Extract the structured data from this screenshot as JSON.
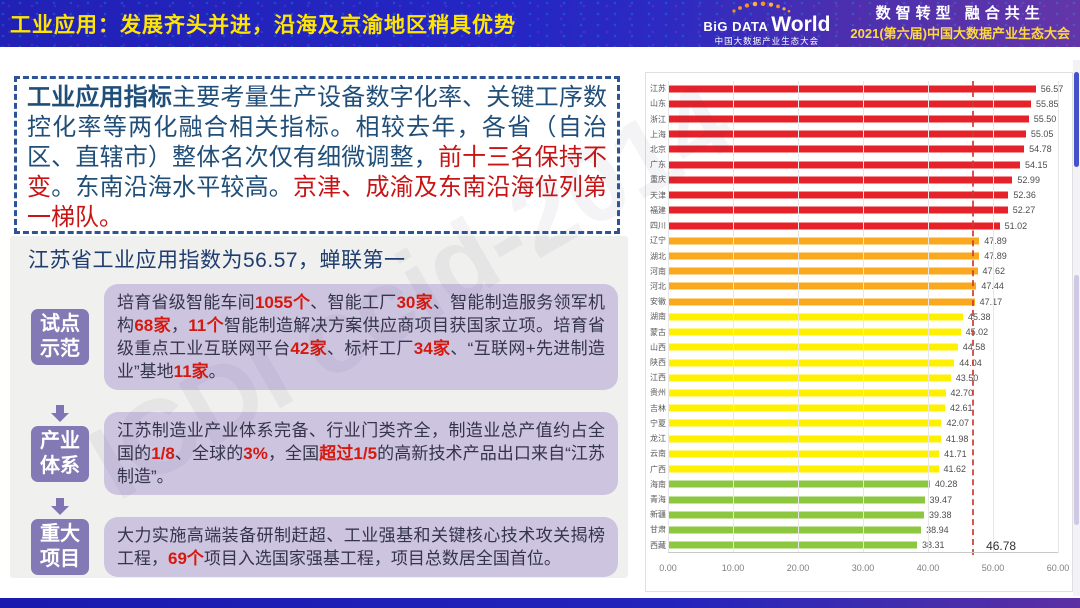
{
  "header": {
    "title": "工业应用：发展齐头并进，沿海及京渝地区稍具优势",
    "logo": {
      "big": "BiG DATA",
      "world": "World",
      "sub": "中国大数据产业生态大会"
    },
    "slogan": "数智转型 融合共生",
    "event": "2021(第六届)中国大数据产业生态大会"
  },
  "intro": {
    "segments": [
      {
        "text": "工业应用指标",
        "style": "lead"
      },
      {
        "text": "主要考量生产设备数字化率、关键工序数控化率等两化融合相关指标。相较去年，各省（自治区、直辖市）整体名次仅有细微调整，",
        "style": "normal"
      },
      {
        "text": "前十三名保持不变",
        "style": "red"
      },
      {
        "text": "。东南沿海水平较高。",
        "style": "normal"
      },
      {
        "text": "京津、成渝及东南沿海位列第一梯队。",
        "style": "red"
      }
    ]
  },
  "subtitle": "江苏省工业应用指数为56.57，蝉联第一",
  "sections": [
    {
      "label_lines": [
        "试点",
        "示范"
      ],
      "segments": [
        {
          "text": "培育省级智能车间",
          "style": "normal"
        },
        {
          "text": "1055个",
          "style": "num"
        },
        {
          "text": "、智能工厂",
          "style": "normal"
        },
        {
          "text": "30家",
          "style": "num"
        },
        {
          "text": "、智能制造服务领军机构",
          "style": "normal"
        },
        {
          "text": "68家",
          "style": "num"
        },
        {
          "text": "，",
          "style": "normal"
        },
        {
          "text": "11个",
          "style": "num"
        },
        {
          "text": "智能制造解决方案供应商项目获国家立项。培育省级重点工业互联网平台",
          "style": "normal"
        },
        {
          "text": "42家",
          "style": "num"
        },
        {
          "text": "、标杆工厂",
          "style": "normal"
        },
        {
          "text": "34家",
          "style": "num"
        },
        {
          "text": "、“互联网+先进制造业”基地",
          "style": "normal"
        },
        {
          "text": "11家",
          "style": "num"
        },
        {
          "text": "。",
          "style": "normal"
        }
      ]
    },
    {
      "label_lines": [
        "产业",
        "体系"
      ],
      "segments": [
        {
          "text": "江苏制造业产业体系完备、行业门类齐全，制造业总产值约占全国的",
          "style": "normal"
        },
        {
          "text": "1/8",
          "style": "num"
        },
        {
          "text": "、全球的",
          "style": "normal"
        },
        {
          "text": "3%",
          "style": "num"
        },
        {
          "text": "，全国",
          "style": "normal"
        },
        {
          "text": "超过1/5",
          "style": "num"
        },
        {
          "text": "的高新技术产品出口来自“江苏制造”。",
          "style": "normal"
        }
      ]
    },
    {
      "label_lines": [
        "重大",
        "项目"
      ],
      "segments": [
        {
          "text": "大力实施高端装备研制赶超、工业强基和关键核心技术攻关揭榜工程，",
          "style": "normal"
        },
        {
          "text": "69个",
          "style": "num"
        },
        {
          "text": "项目入选国家强基工程，项目总数居全国首位。",
          "style": "normal"
        }
      ]
    }
  ],
  "watermark": "ICDI ccid-2014",
  "chart_data": {
    "type": "bar",
    "orientation": "horizontal",
    "title": "",
    "xlabel": "",
    "ylabel": "",
    "xlim": [
      0,
      60
    ],
    "x_ticks": [
      "0.00",
      "10.00",
      "20.00",
      "30.00",
      "40.00",
      "50.00",
      "60.00"
    ],
    "grid": true,
    "average_line": {
      "value": 46.78,
      "label": "46.78"
    },
    "tier_colors": {
      "red": "#e62129",
      "orange": "#faa81e",
      "yellow": "#fff000",
      "green": "#8dc63f"
    },
    "bars": [
      {
        "name": "江苏",
        "value": 56.57,
        "tier": "red"
      },
      {
        "name": "山东",
        "value": 55.85,
        "tier": "red"
      },
      {
        "name": "浙江",
        "value": 55.5,
        "tier": "red"
      },
      {
        "name": "上海",
        "value": 55.05,
        "tier": "red"
      },
      {
        "name": "北京",
        "value": 54.78,
        "tier": "red"
      },
      {
        "name": "广东",
        "value": 54.15,
        "tier": "red"
      },
      {
        "name": "重庆",
        "value": 52.99,
        "tier": "red"
      },
      {
        "name": "天津",
        "value": 52.36,
        "tier": "red"
      },
      {
        "name": "福建",
        "value": 52.27,
        "tier": "red"
      },
      {
        "name": "四川",
        "value": 51.02,
        "tier": "red"
      },
      {
        "name": "辽宁",
        "value": 47.89,
        "tier": "orange"
      },
      {
        "name": "湖北",
        "value": 47.89,
        "tier": "orange"
      },
      {
        "name": "河南",
        "value": 47.62,
        "tier": "orange"
      },
      {
        "name": "河北",
        "value": 47.44,
        "tier": "orange"
      },
      {
        "name": "安徽",
        "value": 47.17,
        "tier": "orange"
      },
      {
        "name": "湖南",
        "value": 45.38,
        "tier": "yellow"
      },
      {
        "name": "蒙古",
        "value": 45.02,
        "tier": "yellow"
      },
      {
        "name": "山西",
        "value": 44.58,
        "tier": "yellow"
      },
      {
        "name": "陕西",
        "value": 44.04,
        "tier": "yellow"
      },
      {
        "name": "江西",
        "value": 43.5,
        "tier": "yellow"
      },
      {
        "name": "贵州",
        "value": 42.7,
        "tier": "yellow"
      },
      {
        "name": "吉林",
        "value": 42.61,
        "tier": "yellow"
      },
      {
        "name": "宁夏",
        "value": 42.07,
        "tier": "yellow"
      },
      {
        "name": "龙江",
        "value": 41.98,
        "tier": "yellow"
      },
      {
        "name": "云南",
        "value": 41.71,
        "tier": "yellow"
      },
      {
        "name": "广西",
        "value": 41.62,
        "tier": "yellow"
      },
      {
        "name": "海南",
        "value": 40.28,
        "tier": "green"
      },
      {
        "name": "青海",
        "value": 39.47,
        "tier": "green"
      },
      {
        "name": "新疆",
        "value": 39.38,
        "tier": "green"
      },
      {
        "name": "甘肃",
        "value": 38.94,
        "tier": "green"
      },
      {
        "name": "西藏",
        "value": 38.31,
        "tier": "green"
      }
    ]
  }
}
